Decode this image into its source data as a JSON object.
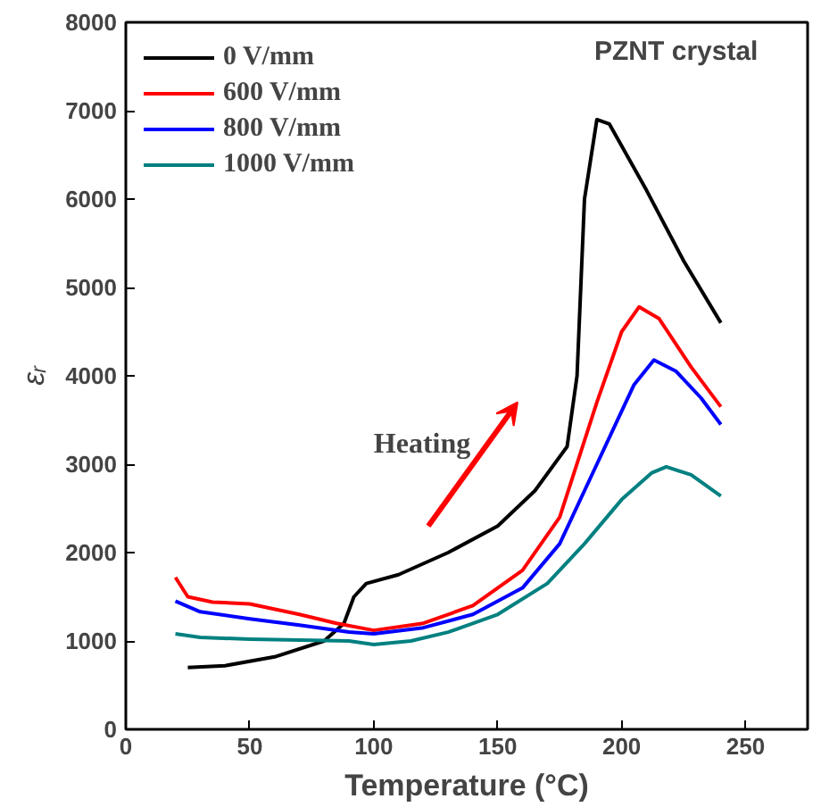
{
  "chart_data": {
    "type": "line",
    "xlabel": "Temperature (°C)",
    "ylabel": "εᵣ",
    "xlim": [
      0,
      275
    ],
    "ylim": [
      0,
      8000
    ],
    "xticks": [
      0,
      50,
      100,
      150,
      200,
      250
    ],
    "yticks": [
      0,
      1000,
      2000,
      3000,
      4000,
      5000,
      6000,
      7000,
      8000
    ],
    "grid": false,
    "legend": "top left",
    "line_style": "solid",
    "annotations": [
      "PZNT crystal",
      "Heating"
    ],
    "series": [
      {
        "name": "0 V/mm",
        "color": "#000000",
        "x": [
          25,
          40,
          60,
          80,
          88,
          92,
          97,
          110,
          130,
          150,
          165,
          178,
          182,
          185,
          190,
          195,
          210,
          225,
          240
        ],
        "values": [
          700,
          720,
          820,
          1000,
          1200,
          1500,
          1650,
          1750,
          2000,
          2300,
          2700,
          3200,
          4000,
          6000,
          6900,
          6850,
          6100,
          5300,
          4600
        ]
      },
      {
        "name": "600 V/mm",
        "color": "#ff0000",
        "x": [
          20,
          25,
          35,
          50,
          70,
          85,
          100,
          120,
          140,
          160,
          175,
          190,
          200,
          207,
          215,
          228,
          240
        ],
        "values": [
          1720,
          1500,
          1440,
          1420,
          1300,
          1200,
          1120,
          1200,
          1400,
          1800,
          2400,
          3700,
          4500,
          4780,
          4650,
          4100,
          3650
        ]
      },
      {
        "name": "800 V/mm",
        "color": "#0000ff",
        "x": [
          20,
          30,
          50,
          70,
          90,
          100,
          120,
          140,
          160,
          175,
          190,
          205,
          213,
          222,
          232,
          240
        ],
        "values": [
          1450,
          1330,
          1250,
          1180,
          1100,
          1080,
          1150,
          1300,
          1600,
          2100,
          3000,
          3900,
          4180,
          4050,
          3750,
          3450
        ]
      },
      {
        "name": "1000 V/mm",
        "color": "#008080",
        "x": [
          20,
          30,
          50,
          70,
          90,
          100,
          115,
          130,
          150,
          170,
          185,
          200,
          212,
          218,
          228,
          240
        ],
        "values": [
          1080,
          1040,
          1020,
          1010,
          1000,
          960,
          1000,
          1100,
          1300,
          1650,
          2100,
          2600,
          2900,
          2970,
          2880,
          2640
        ]
      }
    ]
  }
}
